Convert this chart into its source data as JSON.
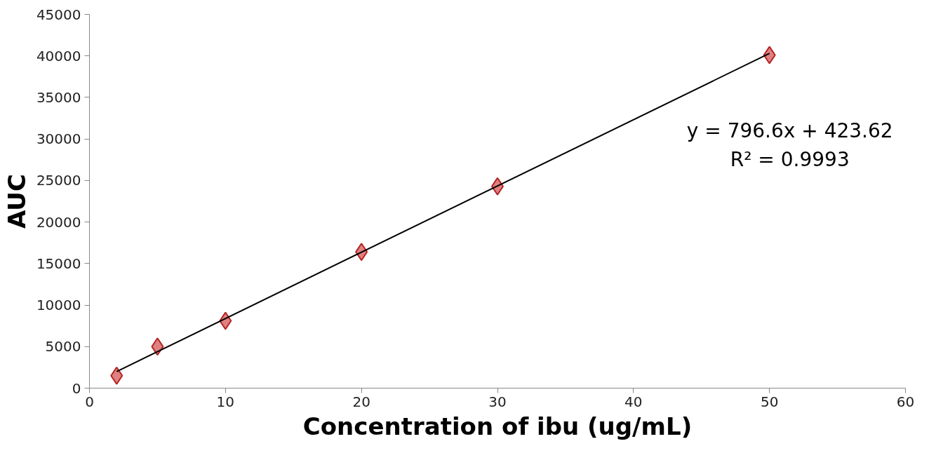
{
  "chart_data": {
    "type": "scatter",
    "xlabel": "Concentration of ibu (ug/mL)",
    "ylabel": "AUC",
    "xlim": [
      0,
      60
    ],
    "xticks": [
      0,
      10,
      20,
      30,
      40,
      50,
      60
    ],
    "ylim": [
      0,
      45000
    ],
    "yticks": [
      0,
      5000,
      10000,
      15000,
      20000,
      25000,
      30000,
      35000,
      40000,
      45000
    ],
    "grid": false,
    "marker": "diamond",
    "series": [
      {
        "color": "#e08080",
        "x": [
          2,
          5,
          10,
          20,
          30,
          50
        ],
        "values": [
          1500,
          5000,
          8100,
          16400,
          24300,
          40100
        ]
      },
      {
        "type": "line",
        "color": "#000000",
        "marker": "none",
        "line_style": "solid",
        "x": [
          2,
          50
        ],
        "values": [
          2000,
          40300
        ]
      }
    ],
    "annotations": [
      "y = 796.6x + 423.62",
      "R² = 0.9993"
    ]
  }
}
